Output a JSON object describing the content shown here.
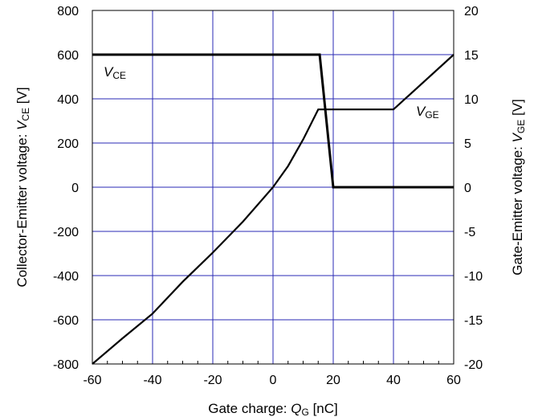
{
  "chart_data": {
    "type": "line",
    "xlabel": {
      "prefix": "Gate charge: ",
      "symbol": "Q",
      "subscript": "G",
      "suffix": " [nC]"
    },
    "ylabel_left": {
      "prefix": "Collector-Emitter voltage: ",
      "symbol": "V",
      "subscript": "CE",
      "suffix": " [V]"
    },
    "ylabel_right": {
      "prefix": "Gate-Emitter voltage: ",
      "symbol": "V",
      "subscript": "GE",
      "suffix": " [V]"
    },
    "xlim": [
      -60,
      60
    ],
    "ylim_left": [
      -800,
      800
    ],
    "ylim_right": [
      -20,
      20
    ],
    "x_ticks": [
      "-60",
      "-40",
      "-20",
      "0",
      "20",
      "40",
      "60"
    ],
    "y_left_ticks": [
      "800",
      "600",
      "400",
      "200",
      "0",
      "-200",
      "-400",
      "-600",
      "-800"
    ],
    "y_right_ticks": [
      "20",
      "15",
      "10",
      "5",
      "0",
      "-5",
      "-10",
      "-15",
      "-20"
    ],
    "grid": true,
    "grid_color": "#2a2ab4",
    "line_color": "#000000",
    "series": [
      {
        "name": "VCE",
        "label_symbol": "V",
        "label_subscript": "CE",
        "axis": "left",
        "x": [
          -60,
          15.5,
          20,
          60
        ],
        "y": [
          600,
          600,
          0,
          0
        ]
      },
      {
        "name": "VGE",
        "label_symbol": "V",
        "label_subscript": "GE",
        "axis": "right",
        "x": [
          -60,
          -50,
          -40,
          -30,
          -20,
          -10,
          0,
          5,
          10,
          15,
          40,
          60
        ],
        "y": [
          -20,
          -17.1,
          -14.3,
          -10.7,
          -7.4,
          -3.9,
          0,
          2.4,
          5.4,
          8.8,
          8.8,
          15
        ]
      }
    ]
  }
}
